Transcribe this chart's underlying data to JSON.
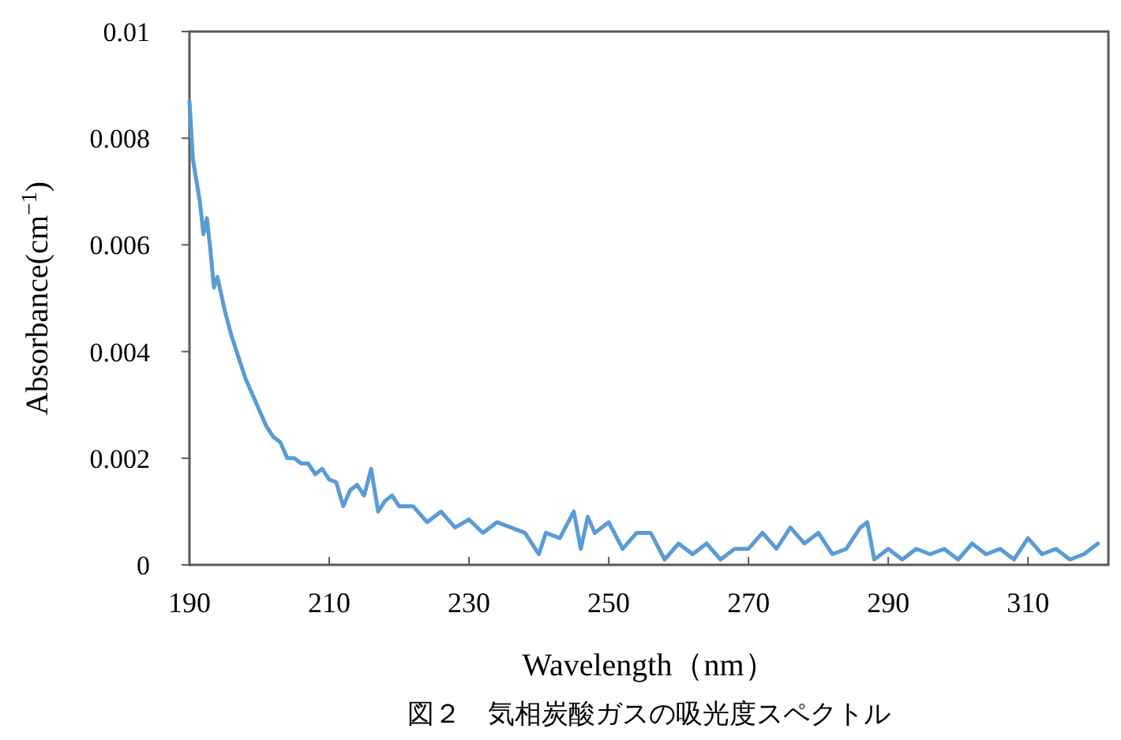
{
  "chart_data": {
    "type": "line",
    "xlabel": "Wavelength（nm）",
    "ylabel": "Absorbance(cm$^{−1}$)",
    "annotations": [
      "図２　気相炭酸ガスの吸光度スペクトル"
    ],
    "xlim": [
      190,
      321.5
    ],
    "xticks": [
      190,
      210,
      230,
      250,
      270,
      290,
      310
    ],
    "ylim": [
      0,
      0.01
    ],
    "yticks": [
      0,
      0.002,
      0.004,
      0.006,
      0.008,
      0.01
    ],
    "grid": false,
    "series": [
      {
        "color": "#5b9bd5",
        "x": [
          190,
          190.5,
          191,
          191.5,
          192,
          192.5,
          193,
          193.5,
          194,
          195,
          196,
          197,
          198,
          199,
          200,
          201,
          202,
          203,
          204,
          205,
          206,
          207,
          208,
          209,
          210,
          211,
          212,
          213,
          214,
          215,
          216,
          217,
          218,
          219,
          220,
          222,
          224,
          226,
          228,
          230,
          232,
          234,
          236,
          238,
          240,
          241,
          243,
          245,
          246,
          247,
          248,
          250,
          252,
          254,
          256,
          258,
          260,
          262,
          264,
          266,
          268,
          270,
          272,
          274,
          276,
          278,
          280,
          282,
          284,
          286,
          287,
          288,
          290,
          292,
          294,
          296,
          298,
          300,
          302,
          304,
          306,
          308,
          310,
          312,
          314,
          316,
          318,
          320
        ],
        "values": [
          0.0087,
          0.0076,
          0.0072,
          0.0068,
          0.0062,
          0.0065,
          0.0059,
          0.0052,
          0.0054,
          0.0048,
          0.0043,
          0.0039,
          0.0035,
          0.0032,
          0.0029,
          0.0026,
          0.0024,
          0.0023,
          0.002,
          0.002,
          0.0019,
          0.0019,
          0.0017,
          0.0018,
          0.0016,
          0.00155,
          0.0011,
          0.0014,
          0.0015,
          0.0013,
          0.0018,
          0.001,
          0.0012,
          0.0013,
          0.0011,
          0.0011,
          0.0008,
          0.001,
          0.0007,
          0.00085,
          0.0006,
          0.0008,
          0.0007,
          0.0006,
          0.0002,
          0.0006,
          0.0005,
          0.001,
          0.0003,
          0.0009,
          0.0006,
          0.0008,
          0.0003,
          0.0006,
          0.0006,
          0.0001,
          0.0004,
          0.0002,
          0.0004,
          0.0001,
          0.0003,
          0.0003,
          0.0006,
          0.0003,
          0.0007,
          0.0004,
          0.0006,
          0.0002,
          0.0003,
          0.0007,
          0.0008,
          0.0001,
          0.0003,
          0.0001,
          0.0003,
          0.0002,
          0.0003,
          0.0001,
          0.0004,
          0.0002,
          0.0003,
          0.0001,
          0.0005,
          0.0002,
          0.0003,
          0.0001,
          0.0002,
          0.0004
        ]
      }
    ]
  }
}
